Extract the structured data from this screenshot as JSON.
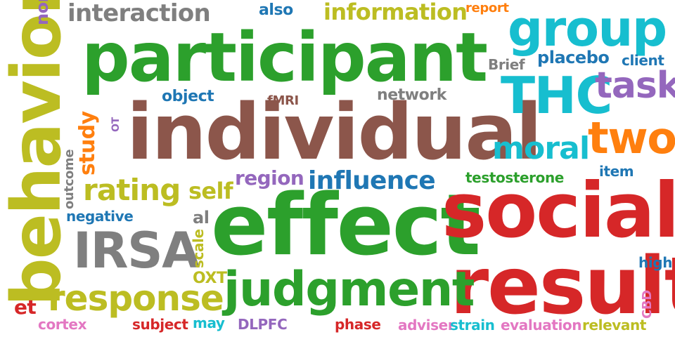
{
  "words": [
    {
      "text": "participant",
      "color": "#2ca02c"
    },
    {
      "text": "individual",
      "color": "#8c564b"
    },
    {
      "text": "effect",
      "color": "#2ca02c"
    },
    {
      "text": "social",
      "color": "#d62728"
    },
    {
      "text": "behavior",
      "color": "#bcbd22"
    },
    {
      "text": "result",
      "color": "#d62728"
    },
    {
      "text": "group",
      "color": "#17becf"
    },
    {
      "text": "judgment",
      "color": "#2ca02c"
    },
    {
      "text": "THC",
      "color": "#17becf"
    },
    {
      "text": "IRSA",
      "color": "#7f7f7f"
    },
    {
      "text": "response",
      "color": "#bcbd22"
    },
    {
      "text": "two",
      "color": "#ff7f0e"
    },
    {
      "text": "task",
      "color": "#9467bd"
    },
    {
      "text": "interaction",
      "color": "#7f7f7f"
    },
    {
      "text": "information",
      "color": "#bcbd22"
    },
    {
      "text": "moral",
      "color": "#17becf"
    },
    {
      "text": "rating",
      "color": "#bcbd22"
    },
    {
      "text": "influence",
      "color": "#1f77b4"
    },
    {
      "text": "self",
      "color": "#bcbd22"
    },
    {
      "text": "study",
      "color": "#ff7f0e"
    },
    {
      "text": "region",
      "color": "#9467bd"
    },
    {
      "text": "placebo",
      "color": "#1f77b4"
    },
    {
      "text": "network",
      "color": "#7f7f7f"
    },
    {
      "text": "testosterone",
      "color": "#2ca02c"
    },
    {
      "text": "object",
      "color": "#1f77b4"
    },
    {
      "text": "also",
      "color": "#1f77b4"
    },
    {
      "text": "client",
      "color": "#1f77b4"
    },
    {
      "text": "Brief",
      "color": "#7f7f7f"
    },
    {
      "text": "item",
      "color": "#1f77b4"
    },
    {
      "text": "negative",
      "color": "#1f77b4"
    },
    {
      "text": "non",
      "color": "#9467bd"
    },
    {
      "text": "report",
      "color": "#ff7f0e"
    },
    {
      "text": "fMRI",
      "color": "#8c564b"
    },
    {
      "text": "al",
      "color": "#7f7f7f"
    },
    {
      "text": "et",
      "color": "#d62728"
    },
    {
      "text": "OXT",
      "color": "#bcbd22"
    },
    {
      "text": "scale",
      "color": "#bcbd22"
    },
    {
      "text": "outcome",
      "color": "#7f7f7f"
    },
    {
      "text": "OT",
      "color": "#9467bd"
    },
    {
      "text": "high",
      "color": "#1f77b4"
    },
    {
      "text": "CBD",
      "color": "#e377c2"
    },
    {
      "text": "cortex",
      "color": "#e377c2"
    },
    {
      "text": "subject",
      "color": "#d62728"
    },
    {
      "text": "may",
      "color": "#17becf"
    },
    {
      "text": "DLPFC",
      "color": "#9467bd"
    },
    {
      "text": "phase",
      "color": "#d62728"
    },
    {
      "text": "adviser",
      "color": "#e377c2"
    },
    {
      "text": "strain",
      "color": "#17becf"
    },
    {
      "text": "evaluation",
      "color": "#e377c2"
    },
    {
      "text": "relevant",
      "color": "#bcbd22"
    }
  ]
}
